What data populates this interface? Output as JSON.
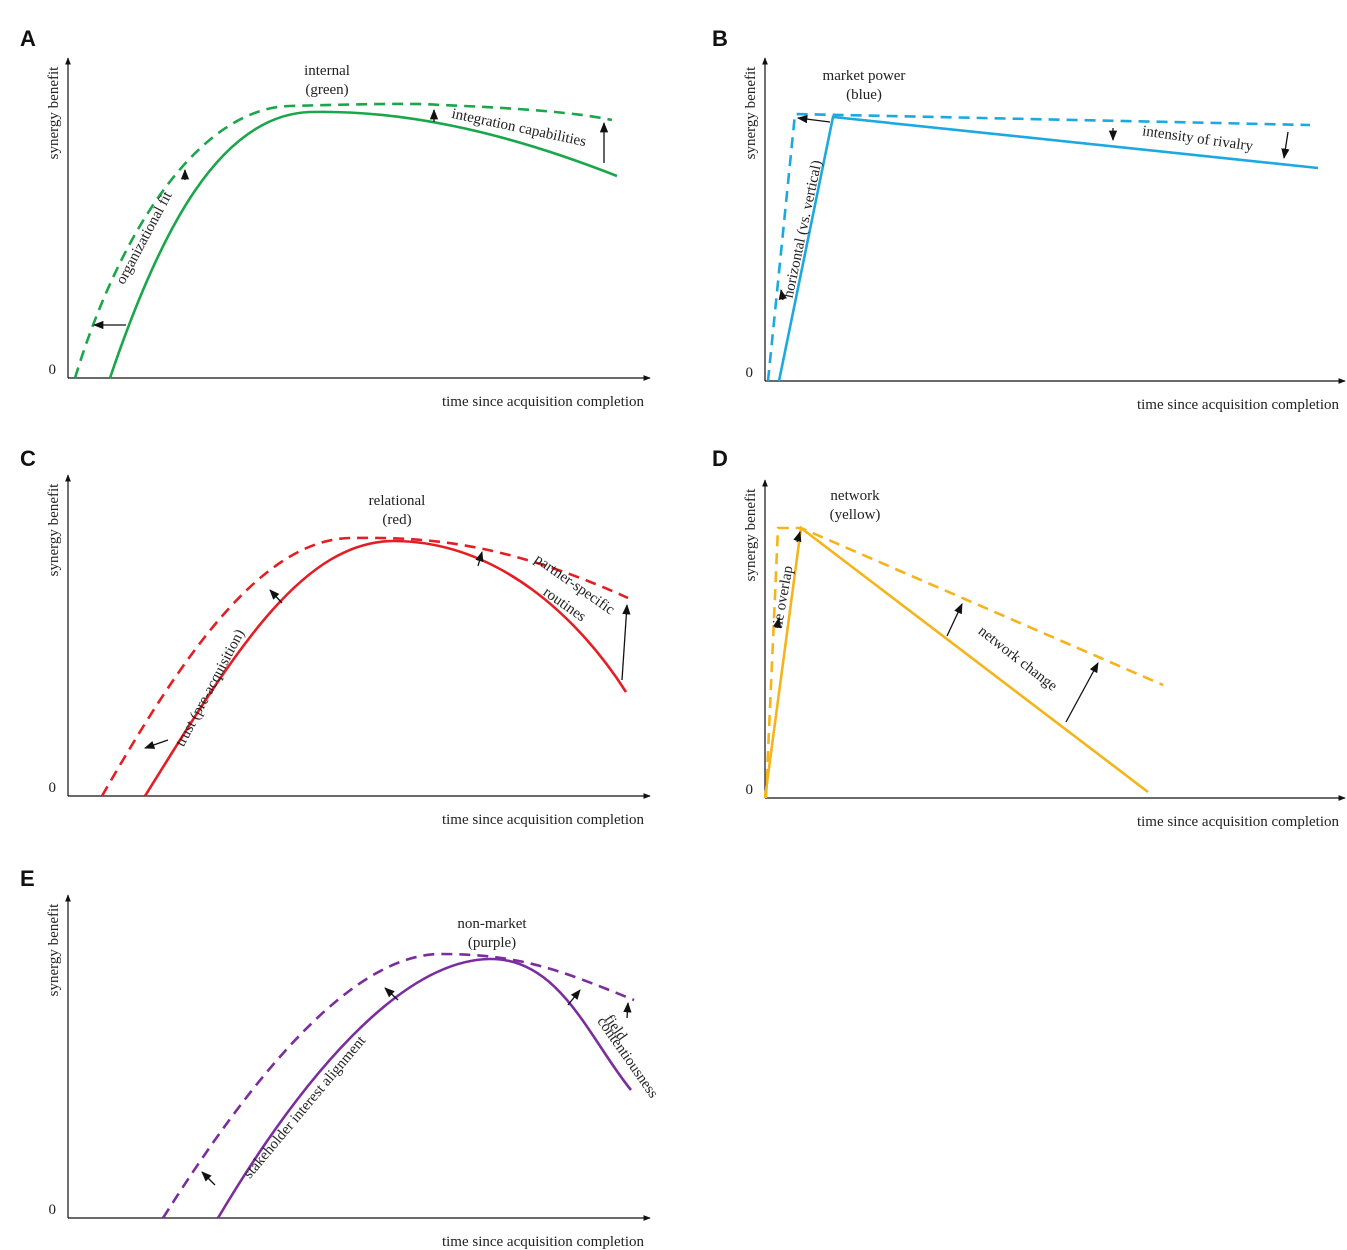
{
  "panels": [
    {
      "letter": "A",
      "y_label": "synergy benefit",
      "zero": "0",
      "x_label": "time since acquisition completion",
      "title_lines": [
        "internal",
        "(green)"
      ],
      "annotations": [
        [
          "organizational fit"
        ],
        [
          "integration capabilities"
        ]
      ]
    },
    {
      "letter": "B",
      "y_label": "synergy benefit",
      "zero": "0",
      "x_label": "time since acquisition completion",
      "title_lines": [
        "market power",
        "(blue)"
      ],
      "annotations": [
        [
          "horizontal (vs. vertical)"
        ],
        [
          "intensity of rivalry"
        ]
      ]
    },
    {
      "letter": "C",
      "y_label": "synergy benefit",
      "zero": "0",
      "x_label": "time since acquisition completion",
      "title_lines": [
        "relational",
        "(red)"
      ],
      "annotations": [
        [
          "trust (pre-acquisition)"
        ],
        [
          "partner-specific",
          "routines"
        ]
      ]
    },
    {
      "letter": "D",
      "y_label": "synergy benefit",
      "zero": "0",
      "x_label": "time since acquisition completion",
      "title_lines": [
        "network",
        "(yellow)"
      ],
      "annotations": [
        [
          "tie overlap"
        ],
        [
          "network change"
        ]
      ]
    },
    {
      "letter": "E",
      "y_label": "synergy benefit",
      "zero": "0",
      "x_label": "time since acquisition completion",
      "title_lines": [
        "non-market",
        "(purple)"
      ],
      "annotations": [
        [
          "stakeholder interest alignment"
        ],
        [
          "field",
          "contentiousness"
        ]
      ]
    }
  ]
}
